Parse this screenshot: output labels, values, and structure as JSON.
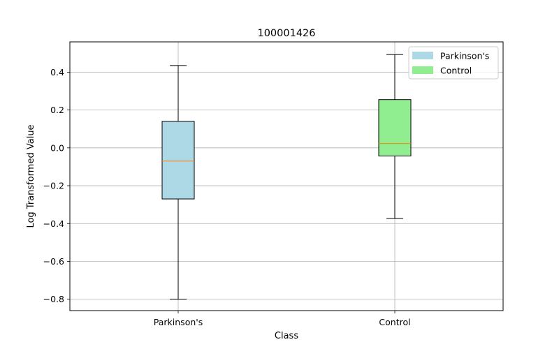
{
  "chart_data": {
    "type": "box",
    "title": "100001426",
    "xlabel": "Class",
    "ylabel": "Log Transformed Value",
    "categories": [
      "Parkinson's",
      "Control"
    ],
    "ylim": [
      -0.86,
      0.56
    ],
    "yticks": [
      -0.8,
      -0.6,
      -0.4,
      -0.2,
      0.0,
      0.2,
      0.4
    ],
    "ytick_labels": [
      "−0.8",
      "−0.6",
      "−0.4",
      "−0.2",
      "0.0",
      "0.2",
      "0.4"
    ],
    "grid": true,
    "legend_position": "top-right",
    "series": [
      {
        "name": "Parkinson's",
        "color": "#add8e6",
        "whisker_low": -0.8,
        "q1": -0.27,
        "median": -0.07,
        "q3": 0.14,
        "whisker_high": 0.435
      },
      {
        "name": "Control",
        "color": "#90ee90",
        "whisker_low": -0.373,
        "q1": -0.043,
        "median": 0.023,
        "q3": 0.255,
        "whisker_high": 0.493
      }
    ],
    "median_color": "#ff7f0e"
  }
}
